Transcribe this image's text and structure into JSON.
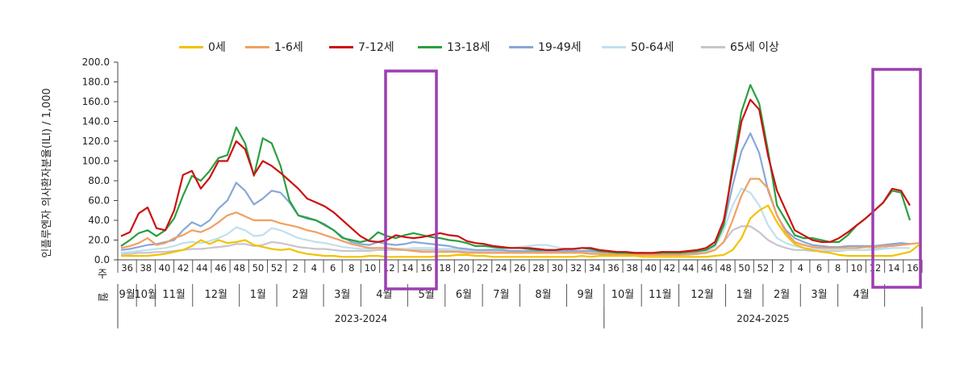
{
  "chart_data": {
    "type": "line",
    "ylabel": "인플루엔자 의사환자분율(ILI) / 1,000",
    "ylim": [
      0,
      200
    ],
    "y_ticks": [
      "200.0",
      "180.0",
      "160.0",
      "140.0",
      "120.0",
      "100.0",
      "80.0",
      "60.0",
      "40.0",
      "20.0",
      "0.0"
    ],
    "row_labels": {
      "week": "주",
      "month": "월"
    },
    "week_labels": [
      "36",
      "38",
      "40",
      "42",
      "44",
      "46",
      "48",
      "50",
      "52",
      "2",
      "4",
      "6",
      "8",
      "10",
      "12",
      "14",
      "16",
      "18",
      "20",
      "22",
      "24",
      "26",
      "28",
      "30",
      "32",
      "34",
      "36",
      "38",
      "40",
      "42",
      "44",
      "46",
      "48",
      "50",
      "52",
      "2",
      "4",
      "6",
      "8",
      "10",
      "12",
      "14",
      "16"
    ],
    "seasons": [
      {
        "label": "2023-2024",
        "months": [
          "9월",
          "10월",
          "11월",
          "12월",
          "1월",
          "2월",
          "3월",
          "4월",
          "5월",
          "6월",
          "7월",
          "8월"
        ]
      },
      {
        "label": "2024-2025",
        "months": [
          "9월",
          "10월",
          "11월",
          "12월",
          "1월",
          "2월",
          "3월",
          "4월"
        ]
      }
    ],
    "highlight_boxes": [
      {
        "season": "2023-2024",
        "weeks": "14-17"
      },
      {
        "season": "2024-2025",
        "weeks": "14-17"
      }
    ],
    "grid": false,
    "legend_position": "top",
    "series": [
      {
        "name": "0세",
        "color": "#f2c200",
        "values": [
          4,
          4,
          4,
          4,
          5,
          6,
          8,
          10,
          14,
          20,
          16,
          20,
          17,
          18,
          20,
          15,
          13,
          11,
          10,
          11,
          8,
          6,
          5,
          4,
          4,
          3,
          3,
          3,
          4,
          4,
          3,
          3,
          3,
          3,
          3,
          3,
          4,
          4,
          5,
          5,
          4,
          4,
          3,
          3,
          3,
          3,
          3,
          3,
          3,
          3,
          3,
          3,
          4,
          3,
          4,
          4,
          4,
          4,
          4,
          3,
          3,
          3,
          3,
          3,
          3,
          3,
          3,
          4,
          5,
          10,
          22,
          42,
          50,
          55,
          38,
          25,
          16,
          12,
          10,
          8,
          7,
          5,
          4,
          4,
          4,
          4,
          4,
          4,
          6,
          8,
          15
        ]
      },
      {
        "name": "1-6세",
        "color": "#f0a060",
        "values": [
          12,
          14,
          17,
          22,
          15,
          17,
          22,
          25,
          30,
          28,
          32,
          38,
          45,
          48,
          44,
          40,
          40,
          40,
          37,
          35,
          33,
          30,
          28,
          25,
          22,
          19,
          16,
          14,
          12,
          12,
          12,
          11,
          10,
          9,
          8,
          8,
          8,
          8,
          8,
          7,
          7,
          7,
          7,
          7,
          7,
          7,
          7,
          7,
          7,
          7,
          7,
          7,
          7,
          6,
          6,
          6,
          5,
          5,
          5,
          5,
          5,
          5,
          5,
          5,
          6,
          6,
          7,
          10,
          18,
          40,
          65,
          82,
          82,
          72,
          45,
          28,
          18,
          15,
          13,
          12,
          12,
          12,
          12,
          12,
          13,
          13,
          14,
          14,
          15,
          16,
          17
        ]
      },
      {
        "name": "7-12세",
        "color": "#cc1111",
        "values": [
          24,
          28,
          47,
          53,
          32,
          30,
          50,
          86,
          90,
          72,
          83,
          100,
          100,
          120,
          112,
          86,
          100,
          95,
          88,
          80,
          72,
          62,
          58,
          54,
          48,
          40,
          32,
          24,
          19,
          18,
          20,
          25,
          23,
          22,
          23,
          25,
          27,
          25,
          24,
          19,
          17,
          16,
          14,
          13,
          12,
          12,
          12,
          11,
          10,
          10,
          11,
          11,
          12,
          12,
          10,
          9,
          8,
          8,
          7,
          7,
          7,
          8,
          8,
          8,
          9,
          10,
          12,
          18,
          40,
          90,
          140,
          162,
          152,
          105,
          70,
          50,
          30,
          25,
          20,
          18,
          18,
          22,
          28,
          35,
          42,
          50,
          58,
          72,
          70,
          55
        ]
      },
      {
        "name": "13-18세",
        "color": "#2aa040",
        "values": [
          14,
          20,
          27,
          30,
          24,
          30,
          42,
          65,
          85,
          80,
          90,
          103,
          106,
          134,
          118,
          85,
          123,
          118,
          95,
          60,
          45,
          42,
          40,
          35,
          30,
          22,
          20,
          18,
          20,
          28,
          24,
          22,
          25,
          27,
          25,
          23,
          22,
          20,
          19,
          17,
          14,
          14,
          13,
          12,
          12,
          12,
          11,
          10,
          10,
          10,
          11,
          11,
          12,
          11,
          9,
          8,
          7,
          7,
          6,
          6,
          6,
          7,
          7,
          7,
          8,
          9,
          10,
          15,
          35,
          95,
          150,
          177,
          158,
          110,
          55,
          40,
          25,
          22,
          22,
          20,
          18,
          18,
          25,
          35,
          42,
          50,
          58,
          70,
          68,
          40
        ]
      },
      {
        "name": "19-49세",
        "color": "#88a8d8",
        "values": [
          10,
          11,
          13,
          15,
          16,
          18,
          20,
          30,
          38,
          34,
          40,
          52,
          60,
          78,
          70,
          56,
          62,
          70,
          68,
          58,
          45,
          43,
          40,
          36,
          30,
          23,
          18,
          16,
          15,
          18,
          16,
          15,
          16,
          18,
          17,
          16,
          15,
          14,
          12,
          11,
          10,
          10,
          10,
          10,
          9,
          9,
          9,
          9,
          9,
          9,
          9,
          9,
          9,
          9,
          8,
          8,
          7,
          7,
          7,
          7,
          6,
          7,
          7,
          7,
          7,
          8,
          10,
          15,
          35,
          75,
          110,
          128,
          108,
          70,
          45,
          30,
          22,
          18,
          15,
          14,
          13,
          13,
          14,
          14,
          14,
          14,
          15,
          16,
          17,
          16
        ]
      },
      {
        "name": "50-64세",
        "color": "#bfe0ee",
        "values": [
          7,
          8,
          9,
          10,
          11,
          12,
          14,
          17,
          18,
          17,
          19,
          22,
          26,
          33,
          30,
          24,
          25,
          32,
          30,
          26,
          22,
          20,
          18,
          17,
          15,
          13,
          12,
          11,
          11,
          12,
          11,
          11,
          11,
          12,
          12,
          12,
          11,
          11,
          11,
          10,
          10,
          10,
          11,
          12,
          12,
          13,
          14,
          15,
          15,
          13,
          11,
          10,
          9,
          9,
          7,
          6,
          6,
          6,
          6,
          5,
          5,
          5,
          5,
          6,
          6,
          7,
          9,
          13,
          30,
          55,
          72,
          68,
          55,
          35,
          22,
          17,
          14,
          12,
          11,
          10,
          10,
          10,
          10,
          10,
          10,
          10,
          11,
          12,
          12,
          12
        ]
      },
      {
        "name": "65세 이상",
        "color": "#c8c4cc",
        "values": [
          6,
          6,
          7,
          7,
          8,
          8,
          9,
          10,
          11,
          11,
          12,
          13,
          14,
          16,
          16,
          14,
          15,
          18,
          17,
          15,
          13,
          12,
          11,
          11,
          10,
          9,
          9,
          9,
          9,
          10,
          10,
          10,
          10,
          10,
          10,
          10,
          10,
          9,
          9,
          9,
          8,
          8,
          8,
          8,
          8,
          8,
          8,
          8,
          8,
          8,
          8,
          8,
          8,
          8,
          6,
          5,
          5,
          5,
          5,
          5,
          5,
          5,
          5,
          5,
          5,
          6,
          8,
          10,
          18,
          30,
          34,
          34,
          28,
          20,
          15,
          12,
          10,
          10,
          9,
          9,
          9,
          9,
          10,
          10,
          10,
          11,
          12,
          15,
          17,
          16
        ]
      }
    ]
  }
}
